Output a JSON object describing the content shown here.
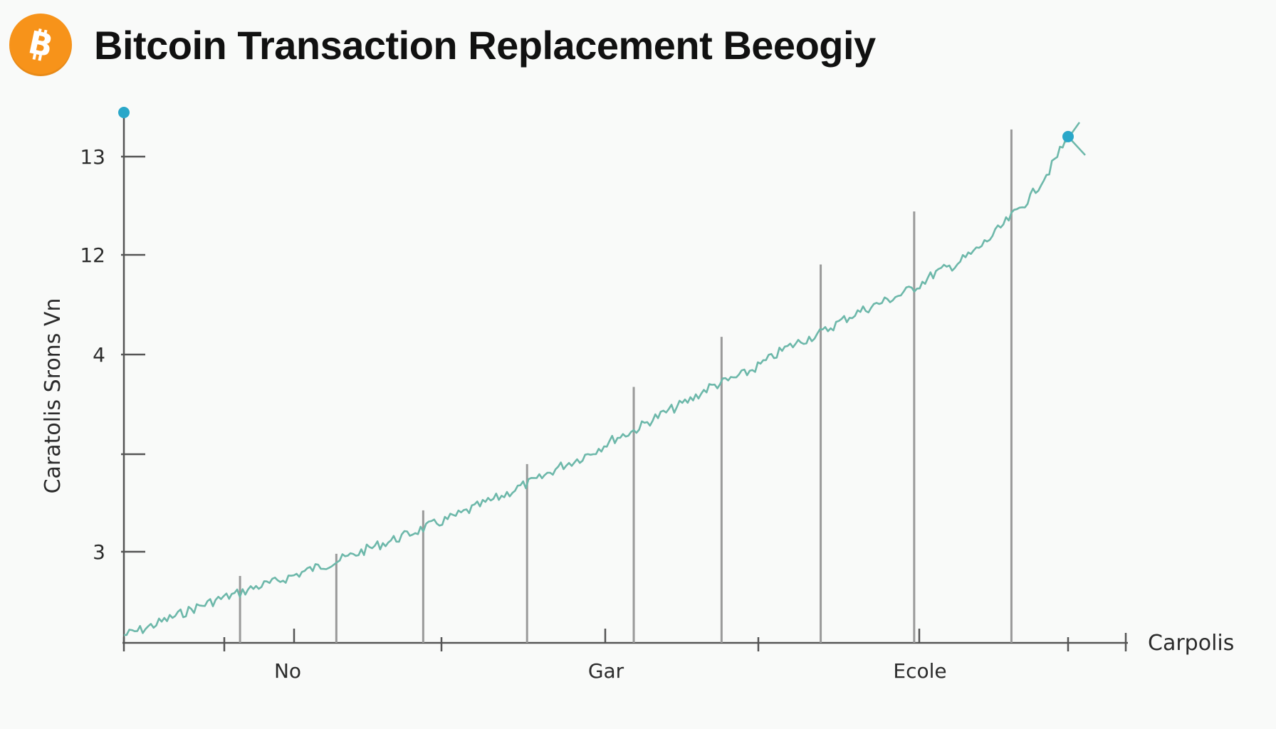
{
  "header": {
    "title": "Bitcoin Transaction Replacement Beeogiy",
    "logo_icon": "bitcoin-logo-icon",
    "logo_color": "#f7931a"
  },
  "chart_data": {
    "type": "line",
    "title": "Bitcoin Transaction Replacement Beeogiy",
    "xlabel": "Carpolis",
    "ylabel": "Caratolis Srons Vn",
    "x_ticks": [
      "No",
      "Gar",
      "Ecole"
    ],
    "y_ticks": [
      "3",
      "",
      "4",
      "12",
      "13"
    ],
    "x_range": [
      0,
      100
    ],
    "y_range": [
      0,
      5.5
    ],
    "line_color": "#6db8aa",
    "marker_color": "#2aa7c9",
    "grid": false,
    "series": [
      {
        "values_x": [
          0,
          2,
          4,
          6,
          8,
          10,
          12,
          14,
          16,
          18,
          20,
          22,
          24,
          26,
          28,
          30,
          32,
          34,
          36,
          38,
          40,
          42,
          44,
          46,
          48,
          50,
          52,
          54,
          56,
          58,
          60,
          62,
          64,
          66,
          68,
          70,
          72,
          74,
          76,
          78,
          80,
          82,
          84,
          86,
          88,
          90,
          92,
          94,
          96,
          98,
          100
        ],
        "values_y": [
          0.08,
          0.14,
          0.22,
          0.3,
          0.38,
          0.45,
          0.51,
          0.58,
          0.63,
          0.7,
          0.77,
          0.83,
          0.9,
          0.98,
          1.05,
          1.12,
          1.2,
          1.27,
          1.35,
          1.44,
          1.52,
          1.62,
          1.7,
          1.82,
          1.9,
          2.0,
          2.12,
          2.2,
          2.32,
          2.42,
          2.52,
          2.65,
          2.72,
          2.8,
          2.92,
          3.05,
          3.14,
          3.22,
          3.34,
          3.44,
          3.52,
          3.6,
          3.7,
          3.84,
          3.92,
          4.05,
          4.22,
          4.42,
          4.62,
          4.9,
          5.25
        ]
      }
    ],
    "vertical_markers_x": [
      12.3,
      22.5,
      31.7,
      42.7,
      54.0,
      63.3,
      73.8,
      83.7,
      94.0
    ],
    "vertical_markers_y": [
      0.62,
      0.85,
      1.3,
      1.78,
      2.58,
      3.1,
      3.85,
      4.4,
      5.25
    ]
  }
}
